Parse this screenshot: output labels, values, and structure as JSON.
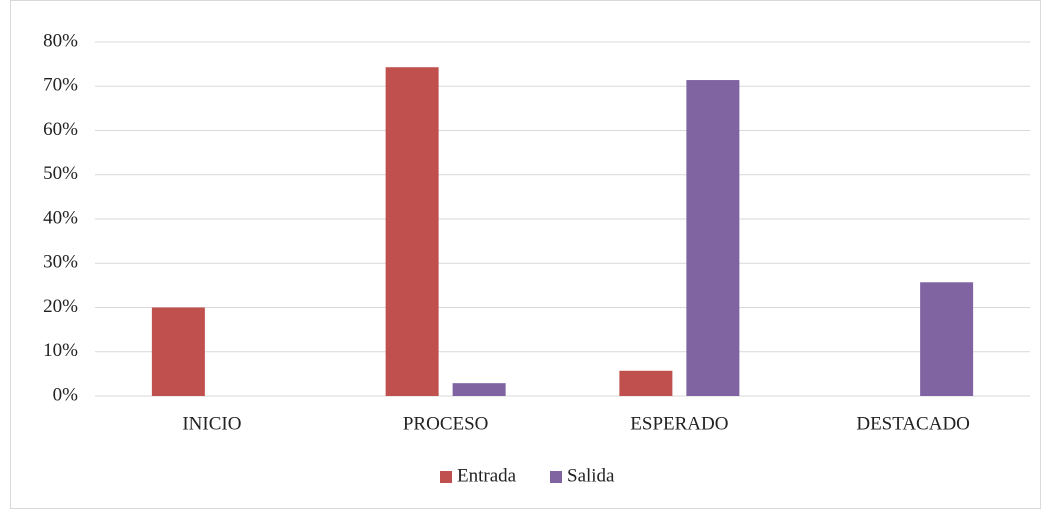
{
  "chart_data": {
    "type": "bar",
    "categories": [
      "INICIO",
      "PROCESO",
      "ESPERADO",
      "DESTACADO"
    ],
    "series": [
      {
        "name": "Entrada",
        "color": "#c0504d",
        "values": [
          20,
          74.3,
          5.7,
          0
        ]
      },
      {
        "name": "Salida",
        "color": "#8064a2",
        "values": [
          0,
          2.9,
          71.4,
          25.7
        ]
      }
    ],
    "ylim": [
      0,
      80
    ],
    "yticks": [
      {
        "value": 0,
        "label": "0%"
      },
      {
        "value": 10,
        "label": "10%"
      },
      {
        "value": 20,
        "label": "20%"
      },
      {
        "value": 30,
        "label": "30%"
      },
      {
        "value": 40,
        "label": "40%"
      },
      {
        "value": 50,
        "label": "50%"
      },
      {
        "value": 60,
        "label": "60%"
      },
      {
        "value": 70,
        "label": "70%"
      },
      {
        "value": 80,
        "label": "80%"
      }
    ],
    "grid": true,
    "legend": "bottom"
  }
}
